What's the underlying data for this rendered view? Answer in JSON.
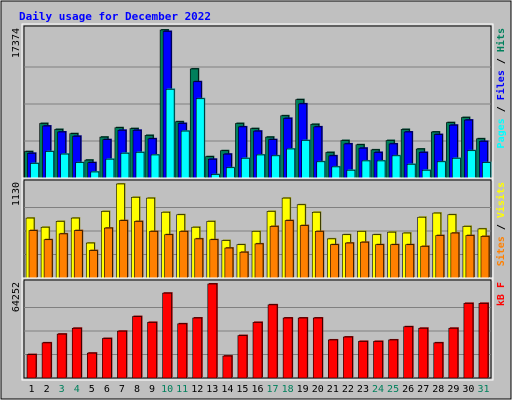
{
  "chart_data": {
    "type": "bar",
    "title": "Daily usage for December 2022",
    "categories": [
      "1",
      "2",
      "3",
      "4",
      "5",
      "6",
      "7",
      "8",
      "9",
      "10",
      "11",
      "12",
      "13",
      "14",
      "15",
      "16",
      "17",
      "18",
      "19",
      "20",
      "21",
      "22",
      "23",
      "24",
      "25",
      "26",
      "27",
      "28",
      "29",
      "30",
      "31"
    ],
    "weekend_days": [
      "3",
      "4",
      "10",
      "11",
      "17",
      "18",
      "24",
      "25",
      "31"
    ],
    "panels": [
      {
        "id": "top",
        "max_label": "17374",
        "ylim": [
          0,
          17374
        ],
        "axis_label_parts": [
          "Pages",
          "Files",
          "Hits"
        ],
        "series": [
          {
            "name": "Hits",
            "values": [
              3100,
              6400,
              5700,
              5200,
              2100,
              4800,
              5900,
              5800,
              5000,
              17374,
              6600,
              12800,
              2500,
              3200,
              6400,
              5800,
              4800,
              7300,
              9200,
              6300,
              3000,
              4400,
              3900,
              3300,
              4400,
              5700,
              3400,
              5400,
              6500,
              7100,
              4600
            ]
          },
          {
            "name": "Files",
            "values": [
              2900,
              6100,
              5400,
              4900,
              1800,
              4500,
              5600,
              5600,
              4600,
              17200,
              6400,
              11300,
              2200,
              2800,
              6000,
              5500,
              4500,
              7000,
              8700,
              6000,
              2600,
              4000,
              3500,
              3000,
              4000,
              5400,
              3000,
              5100,
              6200,
              6800,
              4300
            ]
          },
          {
            "name": "Pages",
            "values": [
              1700,
              3100,
              2800,
              1800,
              700,
              2200,
              2900,
              3000,
              2700,
              10400,
              5500,
              9300,
              400,
              1200,
              2300,
              2700,
              2600,
              3400,
              4400,
              1900,
              1300,
              900,
              2000,
              2000,
              2600,
              1600,
              900,
              1900,
              2300,
              3200,
              1800
            ]
          }
        ]
      },
      {
        "id": "middle",
        "max_label": "1130",
        "ylim": [
          0,
          1130
        ],
        "axis_label_parts": [
          "Sites",
          "Visits"
        ],
        "series": [
          {
            "name": "Visits",
            "values": [
              720,
              610,
              680,
              720,
              420,
              800,
              1130,
              970,
              960,
              790,
              760,
              610,
              680,
              450,
              400,
              560,
              800,
              960,
              880,
              790,
              470,
              520,
              560,
              520,
              550,
              540,
              730,
              780,
              760,
              620,
              590
            ]
          },
          {
            "name": "Sites",
            "values": [
              570,
              460,
              530,
              570,
              330,
              600,
              690,
              680,
              560,
              520,
              560,
              470,
              460,
              360,
              310,
              410,
              620,
              690,
              630,
              560,
              400,
              420,
              430,
              400,
              400,
              400,
              380,
              510,
              540,
              510,
              500
            ]
          }
        ]
      },
      {
        "id": "bottom",
        "max_label": "64252",
        "ylim": [
          0,
          64252
        ],
        "axis_label_parts": [
          "kB F"
        ],
        "series": [
          {
            "name": "kB F",
            "values": [
              16000,
              24000,
              30000,
              34000,
              17000,
              27000,
              32000,
              42000,
              38000,
              58000,
              37000,
              41000,
              64252,
              15000,
              29000,
              38000,
              50000,
              41000,
              41000,
              41000,
              26000,
              28000,
              25000,
              25000,
              26000,
              35000,
              34000,
              24000,
              34000,
              51000,
              51000
            ]
          }
        ]
      }
    ],
    "colors": {
      "background": "#c0c0c0",
      "hits": "#00805c",
      "files": "#0000ff",
      "pages": "#00ffff",
      "visits": "#ffff00",
      "sites": "#ff8000",
      "kbytes": "#ff0000",
      "title": "#0000ff",
      "weekend_label": "#00805c",
      "weekday_label": "#000000",
      "grid": "#808080"
    }
  }
}
